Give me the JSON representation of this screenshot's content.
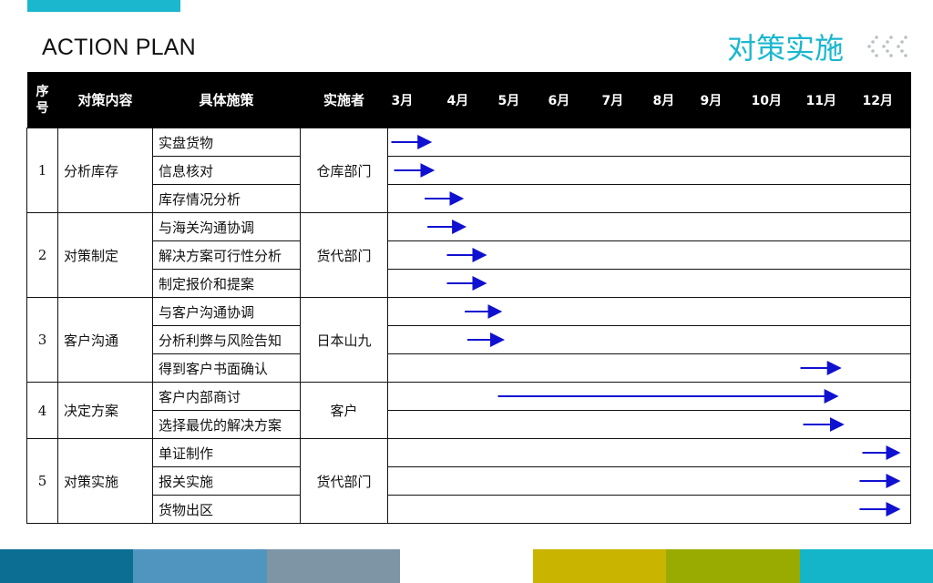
{
  "header": {
    "title": "ACTION PLAN",
    "subtitle": "对策实施"
  },
  "table": {
    "columns": [
      "序号",
      "对策内容",
      "具体施策",
      "实施者"
    ],
    "months": [
      "3月",
      "4月",
      "5月",
      "6月",
      "7月",
      "8月",
      "9月",
      "10月",
      "11月",
      "12月"
    ],
    "groups": [
      {
        "num": "1",
        "item": "分析库存",
        "owner": "仓库部门",
        "tasks": [
          {
            "name": "实盘货物",
            "start": 3.0,
            "end": 3.7
          },
          {
            "name": "信息核对",
            "start": 3.05,
            "end": 3.75
          },
          {
            "name": "库存情况分析",
            "start": 3.6,
            "end": 4.3
          }
        ]
      },
      {
        "num": "2",
        "item": "对策制定",
        "owner": "货代部门",
        "tasks": [
          {
            "name": "与海关沟通协调",
            "start": 3.65,
            "end": 4.35
          },
          {
            "name": "解决方案可行性分析",
            "start": 4.0,
            "end": 4.75
          },
          {
            "name": "制定报价和提案",
            "start": 4.0,
            "end": 4.75
          }
        ]
      },
      {
        "num": "3",
        "item": "客户沟通",
        "owner": "日本山九",
        "tasks": [
          {
            "name": "与客户沟通协调",
            "start": 4.35,
            "end": 5.05
          },
          {
            "name": "分析利弊与风险告知",
            "start": 4.4,
            "end": 5.1
          },
          {
            "name": "得到客户书面确认",
            "start": 10.9,
            "end": 11.6
          }
        ]
      },
      {
        "num": "4",
        "item": "决定方案",
        "owner": "客户",
        "tasks": [
          {
            "name": "客户内部商讨",
            "start": 5.0,
            "end": 11.55
          },
          {
            "name": "选择最优的解决方案",
            "start": 10.95,
            "end": 11.65
          }
        ]
      },
      {
        "num": "5",
        "item": "对策实施",
        "owner": "货代部门",
        "tasks": [
          {
            "name": "单证制作",
            "start": 12.0,
            "end": 12.7
          },
          {
            "name": "报关实施",
            "start": 11.95,
            "end": 12.7
          },
          {
            "name": "货物出区",
            "start": 11.95,
            "end": 12.7
          }
        ]
      }
    ]
  },
  "colors": {
    "accent": "#1ab7cf",
    "arrow": "#1010d0",
    "header_bg": "#000000",
    "footer": [
      "#0d6e94",
      "#4f95c0",
      "#7e95a6",
      "#ffffff",
      "#c9b400",
      "#9aab00",
      "#14b5c9"
    ]
  }
}
